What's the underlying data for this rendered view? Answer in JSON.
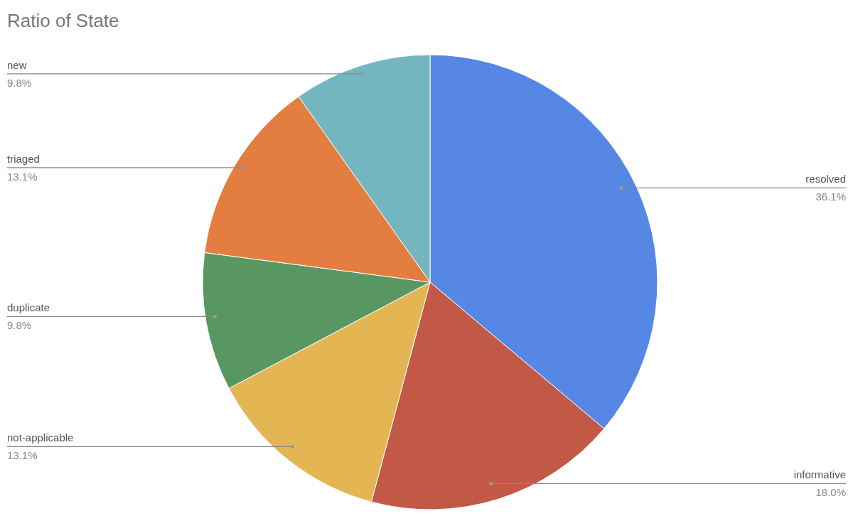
{
  "chart_data": {
    "type": "pie",
    "title": "Ratio of State",
    "categories": [
      "resolved",
      "informative",
      "not-applicable",
      "duplicate",
      "triaged",
      "new"
    ],
    "values": [
      36.1,
      18.0,
      13.1,
      9.8,
      13.1,
      9.8
    ],
    "colors": [
      "#5687e5",
      "#c25946",
      "#e4b553",
      "#589762",
      "#e37d40",
      "#74b6c0"
    ],
    "value_labels": [
      "36.1%",
      "18.0%",
      "13.1%",
      "9.8%",
      "13.1%",
      "9.8%"
    ]
  }
}
